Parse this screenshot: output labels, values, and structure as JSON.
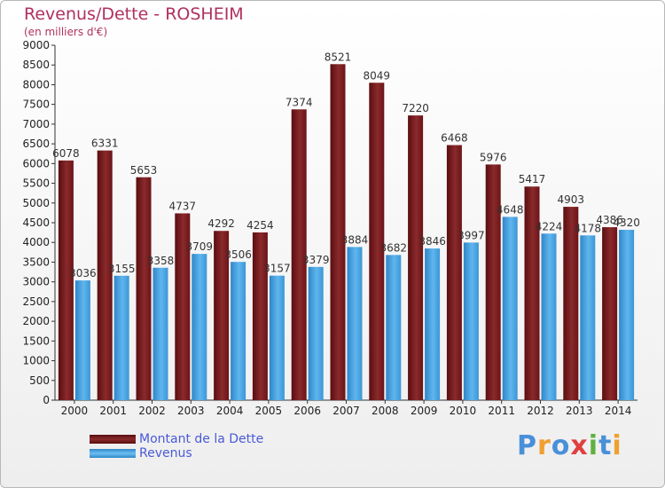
{
  "chart_data": {
    "type": "bar",
    "title": "Revenus/Dette - ROSHEIM",
    "subtitle": "(en milliers d'€)",
    "categories": [
      "2000",
      "2001",
      "2002",
      "2003",
      "2004",
      "2005",
      "2006",
      "2007",
      "2008",
      "2009",
      "2010",
      "2011",
      "2012",
      "2013",
      "2014"
    ],
    "series": [
      {
        "name": "Montant de la Dette",
        "values": [
          6078,
          6331,
          5653,
          4737,
          4292,
          4254,
          7374,
          8521,
          8049,
          7220,
          6468,
          5976,
          5417,
          4903,
          4386
        ],
        "color": "#7a1a1c"
      },
      {
        "name": "Revenus",
        "values": [
          3036,
          3155,
          3358,
          3709,
          3506,
          3157,
          3379,
          3884,
          3682,
          3846,
          3997,
          4648,
          4224,
          4178,
          4320
        ],
        "color": "#4aa6e2"
      }
    ],
    "ylim": [
      0,
      9000
    ],
    "ytick_step": 500,
    "grid": false,
    "legend_position": "bottom-left"
  },
  "logo": {
    "text": "Proxiti",
    "letters": [
      "P",
      "r",
      "o",
      "x",
      "i",
      "t",
      "i"
    ],
    "colors": [
      "#4a90d9",
      "#f0a030",
      "#4a90d9",
      "#e04040",
      "#60b040",
      "#4a90d9",
      "#f0a030"
    ]
  }
}
